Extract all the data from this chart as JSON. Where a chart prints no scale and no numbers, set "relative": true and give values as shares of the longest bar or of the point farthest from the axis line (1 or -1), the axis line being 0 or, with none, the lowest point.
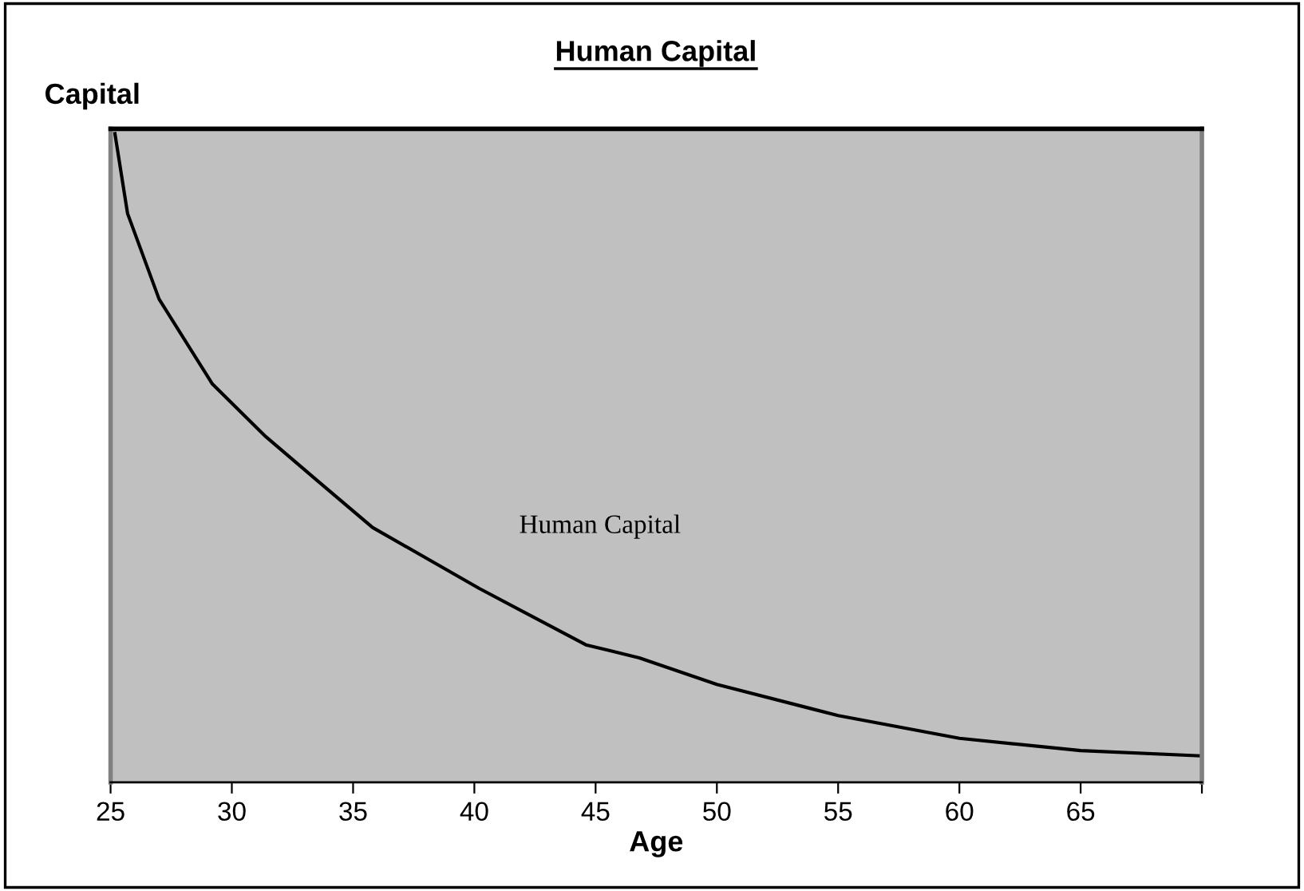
{
  "chart_data": {
    "type": "line",
    "title": "Human Capital",
    "xlabel": "Age",
    "ylabel": "Capital",
    "relative": true,
    "xlim": [
      25,
      70
    ],
    "xticks": [
      25,
      30,
      35,
      40,
      45,
      50,
      55,
      60,
      65,
      {
        "value": 70,
        "label": null
      }
    ],
    "grid": false,
    "legend": false,
    "marker": "none",
    "line_style": "solid",
    "series": [
      {
        "name": "Human Capital",
        "color": "#000000",
        "x": [
          25.18,
          25.7,
          27.0,
          29.2,
          31.4,
          33.5,
          35.8,
          40.2,
          44.6,
          46.8,
          50.0,
          55.0,
          60.0,
          65.0,
          69.9
        ],
        "values": [
          1,
          0.877,
          0.745,
          0.614,
          0.533,
          0.466,
          0.393,
          0.299,
          0.212,
          0.192,
          0.151,
          0.103,
          0.068,
          0.049,
          0.041
        ]
      }
    ]
  }
}
